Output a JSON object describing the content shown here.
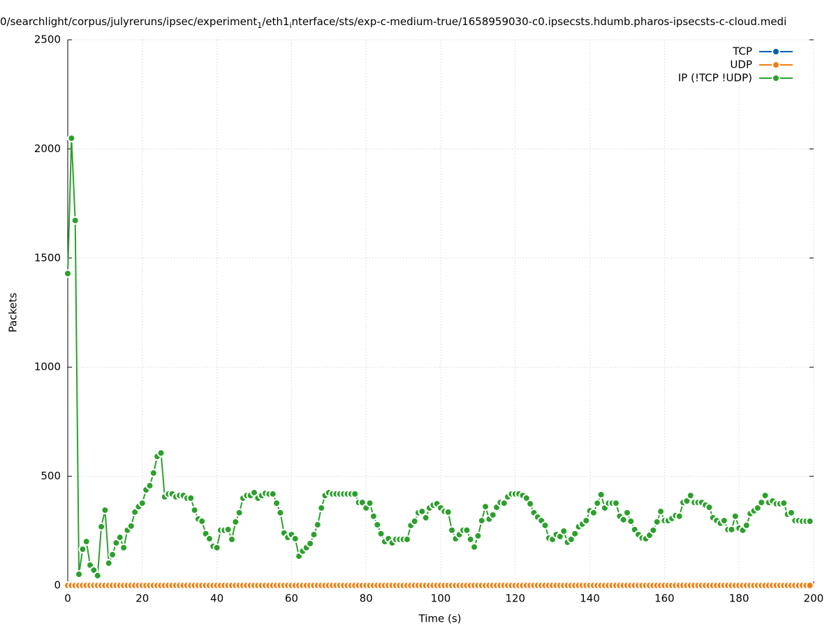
{
  "chart_data": {
    "type": "line",
    "title_parts": [
      "0/searchlight/corpus/julyreruns/ipsec/experiment",
      "1",
      "/eth1",
      "i",
      "nterface/sts/exp-c-medium-true/1658959030-c0.ipsecsts.hdumb.pharos-ipsecsts-c-cloud.medi"
    ],
    "x_label": "Time (s)",
    "y_label": "Packets",
    "xlim": [
      0,
      200
    ],
    "xticks": [
      0,
      20,
      40,
      60,
      80,
      100,
      120,
      140,
      160,
      180,
      200
    ],
    "ylim": [
      0,
      2500
    ],
    "yticks": [
      0,
      500,
      1000,
      1500,
      2000,
      2500
    ],
    "grid": true,
    "legend": "top-right",
    "x": [
      0,
      1,
      2,
      3,
      4,
      5,
      6,
      7,
      8,
      9,
      10,
      11,
      12,
      13,
      14,
      15,
      16,
      17,
      18,
      19,
      20,
      21,
      22,
      23,
      24,
      25,
      26,
      27,
      28,
      29,
      30,
      31,
      32,
      33,
      34,
      35,
      36,
      37,
      38,
      39,
      40,
      41,
      42,
      43,
      44,
      45,
      46,
      47,
      48,
      49,
      50,
      51,
      52,
      53,
      54,
      55,
      56,
      57,
      58,
      59,
      60,
      61,
      62,
      63,
      64,
      65,
      66,
      67,
      68,
      69,
      70,
      71,
      72,
      73,
      74,
      75,
      76,
      77,
      78,
      79,
      80,
      81,
      82,
      83,
      84,
      85,
      86,
      87,
      88,
      89,
      90,
      91,
      92,
      93,
      94,
      95,
      96,
      97,
      98,
      99,
      100,
      101,
      102,
      103,
      104,
      105,
      106,
      107,
      108,
      109,
      110,
      111,
      112,
      113,
      114,
      115,
      116,
      117,
      118,
      119,
      120,
      121,
      122,
      123,
      124,
      125,
      126,
      127,
      128,
      129,
      130,
      131,
      132,
      133,
      134,
      135,
      136,
      137,
      138,
      139,
      140,
      141,
      142,
      143,
      144,
      145,
      146,
      147,
      148,
      149,
      150,
      151,
      152,
      153,
      154,
      155,
      156,
      157,
      158,
      159,
      160,
      161,
      162,
      163,
      164,
      165,
      166,
      167,
      168,
      169,
      170,
      171,
      172,
      173,
      174,
      175,
      176,
      177,
      178,
      179,
      180,
      181,
      182,
      183,
      184,
      185,
      186,
      187,
      188,
      189,
      190,
      191,
      192,
      193,
      194,
      195,
      196,
      197,
      198,
      199
    ],
    "series": [
      {
        "name": "TCP",
        "color": "#0060ad",
        "values": [
          0,
          0,
          0,
          0,
          0,
          0,
          0,
          0,
          0,
          0,
          0,
          0,
          0,
          0,
          0,
          0,
          0,
          0,
          0,
          0,
          0,
          0,
          0,
          0,
          0,
          0,
          0,
          0,
          0,
          0,
          0,
          0,
          0,
          0,
          0,
          0,
          0,
          0,
          0,
          0,
          0,
          0,
          0,
          0,
          0,
          0,
          0,
          0,
          0,
          0,
          0,
          0,
          0,
          0,
          0,
          0,
          0,
          0,
          0,
          0,
          0,
          0,
          0,
          0,
          0,
          0,
          0,
          0,
          0,
          0,
          0,
          0,
          0,
          0,
          0,
          0,
          0,
          0,
          0,
          0,
          0,
          0,
          0,
          0,
          0,
          0,
          0,
          0,
          0,
          0,
          0,
          0,
          0,
          0,
          0,
          0,
          0,
          0,
          0,
          0,
          0,
          0,
          0,
          0,
          0,
          0,
          0,
          0,
          0,
          0,
          0,
          0,
          0,
          0,
          0,
          0,
          0,
          0,
          0,
          0,
          0,
          0,
          0,
          0,
          0,
          0,
          0,
          0,
          0,
          0,
          0,
          0,
          0,
          0,
          0,
          0,
          0,
          0,
          0,
          0,
          0,
          0,
          0,
          0,
          0,
          0,
          0,
          0,
          0,
          0,
          0,
          0,
          0,
          0,
          0,
          0,
          0,
          0,
          0,
          0,
          0,
          0,
          0,
          0,
          0,
          0,
          0,
          0,
          0,
          0,
          0,
          0,
          0,
          0,
          0,
          0,
          0,
          0,
          0,
          0,
          0,
          0,
          0,
          0,
          0,
          0,
          0,
          0,
          0,
          0,
          0,
          0,
          0,
          0,
          0,
          0,
          0,
          0,
          0,
          0
        ]
      },
      {
        "name": "UDP",
        "color": "#f07f13",
        "values": [
          0,
          0,
          0,
          0,
          0,
          0,
          0,
          0,
          0,
          0,
          0,
          0,
          0,
          0,
          0,
          0,
          0,
          0,
          0,
          0,
          0,
          0,
          0,
          0,
          0,
          0,
          0,
          0,
          0,
          0,
          0,
          0,
          0,
          0,
          0,
          0,
          0,
          0,
          0,
          0,
          0,
          0,
          0,
          0,
          0,
          0,
          0,
          0,
          0,
          0,
          0,
          0,
          0,
          0,
          0,
          0,
          0,
          0,
          0,
          0,
          0,
          0,
          0,
          0,
          0,
          0,
          0,
          0,
          0,
          0,
          0,
          0,
          0,
          0,
          0,
          0,
          0,
          0,
          0,
          0,
          0,
          0,
          0,
          0,
          0,
          0,
          0,
          0,
          0,
          0,
          0,
          0,
          0,
          0,
          0,
          0,
          0,
          0,
          0,
          0,
          0,
          0,
          0,
          0,
          0,
          0,
          0,
          0,
          0,
          0,
          0,
          0,
          0,
          0,
          0,
          0,
          0,
          0,
          0,
          0,
          0,
          0,
          0,
          0,
          0,
          0,
          0,
          0,
          0,
          0,
          0,
          0,
          0,
          0,
          0,
          0,
          0,
          0,
          0,
          0,
          0,
          0,
          0,
          0,
          0,
          0,
          0,
          0,
          0,
          0,
          0,
          0,
          0,
          0,
          0,
          0,
          0,
          0,
          0,
          0,
          0,
          0,
          0,
          0,
          0,
          0,
          0,
          0,
          0,
          0,
          0,
          0,
          0,
          0,
          0,
          0,
          0,
          0,
          0,
          0,
          0,
          0,
          0,
          0,
          0,
          0,
          0,
          0,
          0,
          0,
          0,
          0,
          0,
          0,
          0,
          0,
          0,
          0,
          0,
          0
        ]
      },
      {
        "name": "IP (!TCP  !UDP)",
        "color": "#2ca02c",
        "values": [
          1429,
          2049,
          1672,
          51,
          166,
          201,
          93,
          70,
          45,
          269,
          345,
          102,
          141,
          195,
          220,
          173,
          253,
          272,
          336,
          361,
          377,
          438,
          457,
          515,
          591,
          607,
          406,
          419,
          419,
          406,
          412,
          412,
          400,
          400,
          345,
          304,
          294,
          237,
          214,
          179,
          173,
          253,
          253,
          256,
          211,
          291,
          333,
          400,
          412,
          412,
          425,
          400,
          412,
          422,
          419,
          419,
          377,
          333,
          240,
          220,
          233,
          214,
          134,
          157,
          173,
          192,
          233,
          278,
          355,
          412,
          425,
          419,
          419,
          419,
          419,
          419,
          419,
          419,
          380,
          380,
          355,
          377,
          317,
          278,
          237,
          201,
          214,
          195,
          211,
          211,
          211,
          211,
          275,
          294,
          333,
          339,
          310,
          355,
          368,
          374,
          355,
          339,
          336,
          253,
          214,
          233,
          253,
          253,
          211,
          176,
          227,
          297,
          361,
          304,
          323,
          358,
          380,
          377,
          406,
          419,
          419,
          419,
          412,
          400,
          374,
          333,
          313,
          297,
          275,
          217,
          211,
          233,
          224,
          249,
          198,
          211,
          237,
          269,
          281,
          297,
          342,
          333,
          377,
          416,
          355,
          377,
          377,
          377,
          317,
          301,
          333,
          294,
          256,
          233,
          217,
          214,
          230,
          253,
          291,
          339,
          297,
          297,
          307,
          320,
          317,
          380,
          387,
          412,
          380,
          380,
          380,
          368,
          358,
          310,
          297,
          285,
          297,
          256,
          256,
          317,
          262,
          253,
          275,
          329,
          342,
          355,
          380,
          412,
          380,
          387,
          374,
          374,
          377,
          326,
          333,
          297,
          297,
          294,
          294,
          294
        ]
      }
    ]
  }
}
